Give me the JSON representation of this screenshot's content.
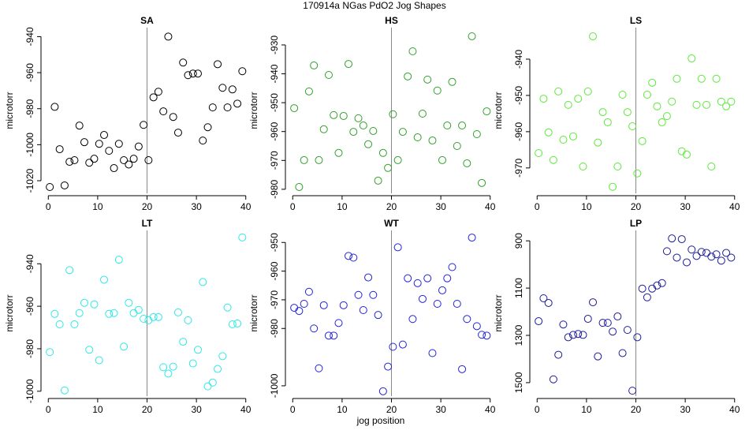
{
  "title": "170914a   NGas PdO2 Jog Shapes",
  "xlabel": "jog position",
  "chart_data": [
    {
      "type": "scatter",
      "title": "SA",
      "ylabel": "microtorr",
      "color": "#000000",
      "vline": 20,
      "xlim": [
        -1,
        41
      ],
      "xticks": [
        0,
        10,
        20,
        30,
        40
      ],
      "ylim": [
        -1027,
        -935
      ],
      "yticks": [
        -940,
        -960,
        -980,
        -1000,
        -1020
      ],
      "x": [
        0.3,
        1.3,
        2.3,
        3.3,
        4.3,
        5.3,
        6.3,
        7.3,
        8.3,
        9.3,
        10.3,
        11.3,
        12.3,
        13.3,
        14.3,
        15.3,
        16.3,
        17.3,
        18.3,
        19.3,
        20.3,
        21.3,
        22.3,
        23.3,
        24.3,
        25.3,
        26.3,
        27.3,
        28.3,
        29.3,
        30.3,
        31.3,
        32.3,
        33.3,
        34.3,
        35.3,
        36.3,
        37.3,
        38.3,
        39.3
      ],
      "values": [
        -1023.5,
        -979,
        -1002.5,
        -1022.6,
        -1009.5,
        -1008.6,
        -989.4,
        -998.6,
        -1010,
        -1007.8,
        -999.5,
        -994.6,
        -1003.4,
        -1013,
        -999.5,
        -1008.6,
        -1011,
        -1007.8,
        -1001,
        -989,
        -1008.6,
        -973.7,
        -970.6,
        -981.5,
        -940,
        -984.6,
        -993.3,
        -954.4,
        -961.4,
        -960.5,
        -960.5,
        -997.7,
        -990.3,
        -979.3,
        -955.3,
        -968.4,
        -979.3,
        -969.3,
        -977.2,
        -959.2
      ]
    },
    {
      "type": "scatter",
      "title": "HS",
      "ylabel": "microtorr",
      "color": "#33a02c",
      "vline": 20,
      "xlim": [
        -1,
        41
      ],
      "xticks": [
        0,
        10,
        20,
        30,
        40
      ],
      "ylim": [
        -981.4,
        -924
      ],
      "yticks": [
        -930,
        -940,
        -950,
        -960,
        -970,
        -980
      ],
      "x": [
        0.3,
        1.3,
        2.3,
        3.3,
        4.3,
        5.3,
        6.3,
        7.3,
        8.3,
        9.3,
        10.3,
        11.3,
        12.3,
        13.3,
        14.3,
        15.3,
        16.3,
        17.3,
        18.3,
        19.3,
        20.3,
        21.3,
        22.3,
        23.3,
        24.3,
        25.3,
        26.3,
        27.3,
        28.3,
        29.3,
        30.3,
        31.3,
        32.3,
        33.3,
        34.3,
        35.3,
        36.3,
        37.3,
        38.3,
        39.3
      ],
      "values": [
        -951.9,
        -979.2,
        -969.9,
        -946.1,
        -937.1,
        -969.9,
        -959.2,
        -940.4,
        -954.3,
        -967.4,
        -954.6,
        -936.6,
        -960.1,
        -955.4,
        -957.9,
        -964.4,
        -959.8,
        -977,
        -967.4,
        -972.6,
        -954,
        -969.9,
        -960.1,
        -940.9,
        -932.2,
        -962,
        -953.8,
        -942,
        -963.1,
        -945.8,
        -969.9,
        -957.9,
        -942.8,
        -965,
        -957.9,
        -971,
        -927,
        -960.9,
        -977.8,
        -953
      ]
    },
    {
      "type": "scatter",
      "title": "LS",
      "ylabel": "microtorr",
      "color": "#5ee83c",
      "vline": 20,
      "xlim": [
        -1,
        41
      ],
      "xticks": [
        0,
        10,
        20,
        30,
        40
      ],
      "ylim": [
        -977,
        -931.3
      ],
      "yticks": [
        -940,
        -950,
        -960,
        -970
      ],
      "x": [
        0.3,
        1.3,
        2.3,
        3.3,
        4.3,
        5.3,
        6.3,
        7.3,
        8.3,
        9.3,
        10.3,
        11.3,
        12.3,
        13.3,
        14.3,
        15.3,
        16.3,
        17.3,
        18.3,
        19.3,
        20.3,
        21.3,
        22.3,
        23.3,
        24.3,
        25.3,
        26.3,
        27.3,
        28.3,
        29.3,
        30.3,
        31.3,
        32.3,
        33.3,
        34.3,
        35.3,
        36.3,
        37.3,
        38.3,
        39.3
      ],
      "values": [
        -965.9,
        -950.9,
        -960.2,
        -967.8,
        -948.9,
        -962.2,
        -952.6,
        -961.3,
        -950.9,
        -969.6,
        -948.9,
        -933.7,
        -963,
        -954.6,
        -957.4,
        -975.2,
        -969.6,
        -949.8,
        -954.6,
        -958.5,
        -971.5,
        -962.6,
        -949.8,
        -946.5,
        -953,
        -957.4,
        -955.7,
        -951.7,
        -945.4,
        -965.4,
        -966.3,
        -939.8,
        -952.6,
        -945.4,
        -952.6,
        -969.6,
        -945.4,
        -951.7,
        -953,
        -951.7
      ]
    },
    {
      "type": "scatter",
      "title": "LT",
      "ylabel": "microtorr",
      "color": "#2ee8e8",
      "vline": 20,
      "xlim": [
        -1,
        41
      ],
      "xticks": [
        0,
        10,
        20,
        30,
        40
      ],
      "ylim": [
        -1002.3,
        -924.3
      ],
      "yticks": [
        -940,
        -960,
        -980,
        -1000
      ],
      "x": [
        0.3,
        1.3,
        2.3,
        3.3,
        4.3,
        5.3,
        6.3,
        7.3,
        8.3,
        9.3,
        10.3,
        11.3,
        12.3,
        13.3,
        14.3,
        15.3,
        16.3,
        17.3,
        18.3,
        19.3,
        20.3,
        21.3,
        22.3,
        23.3,
        24.3,
        25.3,
        26.3,
        27.3,
        28.3,
        29.3,
        30.3,
        31.3,
        32.3,
        33.3,
        34.3,
        35.3,
        36.3,
        37.3,
        38.3,
        39.3
      ],
      "values": [
        -981.6,
        -963.6,
        -968.5,
        -999.6,
        -943,
        -968.5,
        -963.2,
        -958.4,
        -980.5,
        -959.1,
        -985.4,
        -947.5,
        -963.6,
        -963.2,
        -938.1,
        -979,
        -958.4,
        -963.2,
        -961.7,
        -965.9,
        -966.6,
        -965.1,
        -965.1,
        -988.7,
        -991.7,
        -988.4,
        -962.9,
        -976.7,
        -966.6,
        -986.9,
        -980.5,
        -948.6,
        -997.7,
        -995.9,
        -989.5,
        -983.5,
        -960.6,
        -968.5,
        -968.1,
        -927.6
      ]
    },
    {
      "type": "scatter",
      "title": "WT",
      "ylabel": "microtorr",
      "color": "#2323d8",
      "vline": 20,
      "xlim": [
        -1,
        41
      ],
      "xticks": [
        0,
        10,
        20,
        30,
        40
      ],
      "ylim": [
        -1003.6,
        -945.8
      ],
      "yticks": [
        -950,
        -960,
        -970,
        -980,
        -1000
      ],
      "x": [
        0.3,
        1.3,
        2.3,
        3.3,
        4.3,
        5.3,
        6.3,
        7.3,
        8.3,
        9.3,
        10.3,
        11.3,
        12.3,
        13.3,
        14.3,
        15.3,
        16.3,
        17.3,
        18.3,
        19.3,
        20.3,
        21.3,
        22.3,
        23.3,
        24.3,
        25.3,
        26.3,
        27.3,
        28.3,
        29.3,
        30.3,
        31.3,
        32.3,
        33.3,
        34.3,
        35.3,
        36.3,
        37.3,
        38.3,
        39.3
      ],
      "values": [
        -972.8,
        -973.9,
        -971.4,
        -967.2,
        -980,
        -993.9,
        -971.9,
        -982.5,
        -982.5,
        -978.1,
        -971.9,
        -954.7,
        -955.3,
        -968.3,
        -973.6,
        -962.2,
        -968.3,
        -975.3,
        -1001.9,
        -993.3,
        -986.4,
        -951.7,
        -985.6,
        -962.5,
        -976.7,
        -964.2,
        -969.7,
        -962.5,
        -988.6,
        -971.4,
        -966.7,
        -962.5,
        -958.6,
        -971.4,
        -994.2,
        -976.7,
        -948.3,
        -979.2,
        -982.2,
        -982.5
      ]
    },
    {
      "type": "scatter",
      "title": "LP",
      "ylabel": "microtorr",
      "color": "#1c1c9a",
      "vline": 20,
      "xlim": [
        -1,
        41
      ],
      "xticks": [
        0,
        10,
        20,
        30,
        40
      ],
      "ylim": [
        1557,
        856
      ],
      "yticks": [
        900,
        1100,
        1300,
        1500
      ],
      "x": [
        0.3,
        1.3,
        2.3,
        3.3,
        4.3,
        5.3,
        6.3,
        7.3,
        8.3,
        9.3,
        10.3,
        11.3,
        12.3,
        13.3,
        14.3,
        15.3,
        16.3,
        17.3,
        18.3,
        19.3,
        20.3,
        21.3,
        22.3,
        23.3,
        24.3,
        25.3,
        26.3,
        27.3,
        28.3,
        29.3,
        30.3,
        31.3,
        32.3,
        33.3,
        34.3,
        35.3,
        36.3,
        37.3,
        38.3,
        39.3
      ],
      "values": [
        1240,
        1143,
        1163,
        1486,
        1382,
        1254,
        1308,
        1298,
        1294,
        1298,
        1230,
        1160,
        1389,
        1247,
        1247,
        1284,
        1220,
        1375,
        1277,
        1534,
        1308,
        1102,
        1139,
        1102,
        1089,
        1079,
        944,
        890,
        971,
        893,
        991,
        937,
        964,
        947,
        951,
        967,
        957,
        984,
        951,
        971
      ]
    }
  ]
}
